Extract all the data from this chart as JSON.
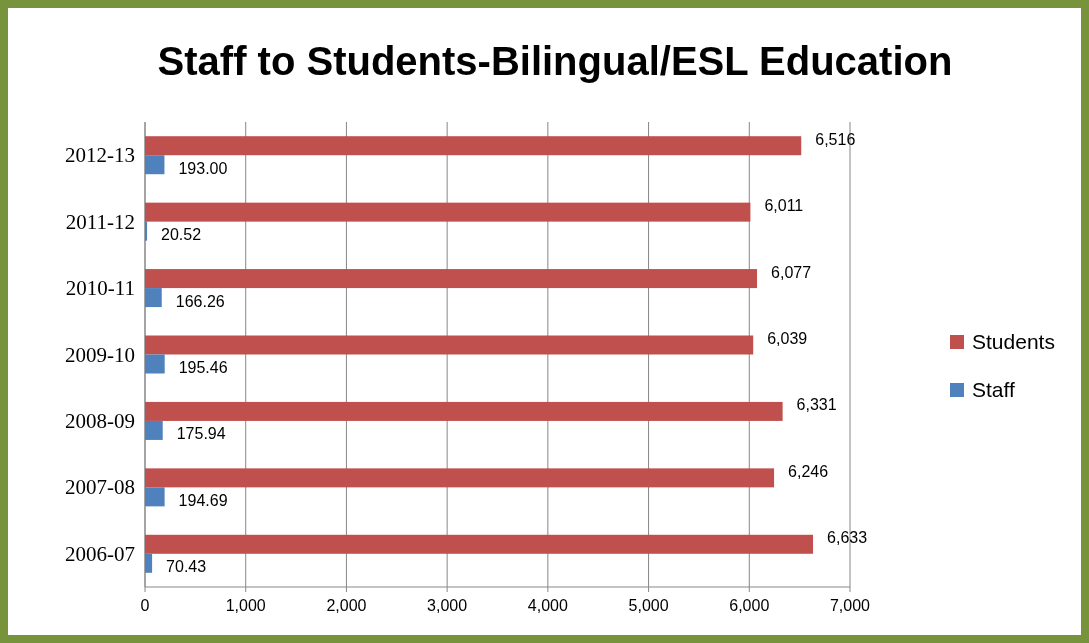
{
  "chart_data": {
    "type": "bar",
    "orientation": "horizontal",
    "title": "Staff to Students-Bilingual/ESL Education",
    "categories": [
      "2012-13",
      "2011-12",
      "2010-11",
      "2009-10",
      "2008-09",
      "2007-08",
      "2006-07"
    ],
    "series": [
      {
        "name": "Students",
        "color": "#c0504d",
        "values": [
          6516,
          6011,
          6077,
          6039,
          6331,
          6246,
          6633
        ],
        "value_labels": [
          "6,516",
          "6,011",
          "6,077",
          "6,039",
          "6,331",
          "6,246",
          "6,633"
        ]
      },
      {
        "name": "Staff",
        "color": "#4f81bd",
        "values": [
          193.0,
          20.52,
          166.26,
          195.46,
          175.94,
          194.69,
          70.43
        ],
        "value_labels": [
          "193.00",
          "20.52",
          "166.26",
          "195.46",
          "175.94",
          "194.69",
          "70.43"
        ]
      }
    ],
    "xlim": [
      0,
      7000
    ],
    "xticks": [
      {
        "value": 0,
        "label": "0"
      },
      {
        "value": 1000,
        "label": "1,000"
      },
      {
        "value": 2000,
        "label": "2,000"
      },
      {
        "value": 3000,
        "label": "3,000"
      },
      {
        "value": 4000,
        "label": "4,000"
      },
      {
        "value": 5000,
        "label": "5,000"
      },
      {
        "value": 6000,
        "label": "6,000"
      },
      {
        "value": 7000,
        "label": "7,000"
      }
    ],
    "grid": "x",
    "legend": "right"
  }
}
